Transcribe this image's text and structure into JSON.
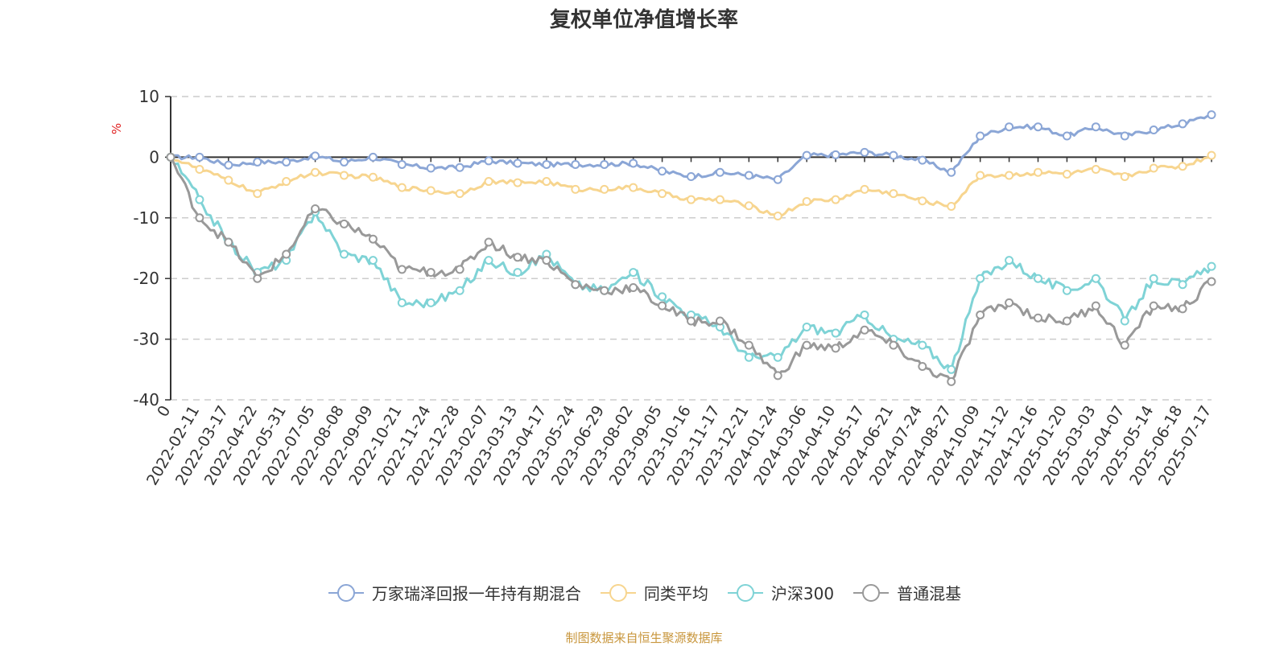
{
  "title": "复权单位净值增长率",
  "unit_label": "%",
  "source_note": "制图数据来自恒生聚源数据库",
  "legend_order": [
    "万家瑞泽回报一年持有期混合",
    "同类平均",
    "沪深300",
    "普通混基"
  ],
  "chart_data": {
    "type": "line",
    "title": "复权单位净值增长率",
    "ylabel": "%",
    "xlabel": "",
    "ylim": [
      -40,
      10
    ],
    "yticks": [
      10,
      0,
      -10,
      -20,
      -30,
      -40
    ],
    "grid": true,
    "legend_position": "bottom",
    "x_tick_labels": [
      "0",
      "2022-02-11",
      "2022-03-17",
      "2022-04-22",
      "2022-05-31",
      "2022-07-05",
      "2022-08-08",
      "2022-09-09",
      "2022-10-21",
      "2022-11-24",
      "2022-12-28",
      "2023-02-07",
      "2023-03-13",
      "2023-04-17",
      "2023-05-24",
      "2023-06-29",
      "2023-08-02",
      "2023-09-05",
      "2023-10-16",
      "2023-11-17",
      "2023-12-21",
      "2024-01-24",
      "2024-03-06",
      "2024-04-10",
      "2024-05-17",
      "2024-06-21",
      "2024-07-24",
      "2024-08-27",
      "2024-10-09",
      "2024-11-12",
      "2024-12-16",
      "2025-01-20",
      "2025-03-03",
      "2025-04-07",
      "2025-05-14",
      "2025-06-18",
      "2025-07-17"
    ],
    "series": [
      {
        "name": "万家瑞泽回报一年持有期混合",
        "color": "#8ba6d6",
        "values": [
          0,
          0,
          -1.3,
          -0.8,
          -0.8,
          0.2,
          -0.8,
          0,
          -1.2,
          -1.8,
          -1.7,
          -0.6,
          -1,
          -1.2,
          -1.2,
          -1.2,
          -1,
          -2.3,
          -3.2,
          -2.5,
          -3,
          -3.7,
          0.3,
          0.4,
          0.8,
          0.3,
          -0.5,
          -2.5,
          3.5,
          5,
          5,
          3.5,
          5,
          3.5,
          4.5,
          5.5,
          7
        ]
      },
      {
        "name": "同类平均",
        "color": "#f7d58f",
        "values": [
          0,
          -2,
          -3.8,
          -6,
          -4,
          -2.5,
          -3,
          -3.3,
          -5,
          -5.5,
          -6,
          -4,
          -4.2,
          -4,
          -5.3,
          -5.3,
          -5,
          -6,
          -7,
          -7,
          -8,
          -9.7,
          -7.3,
          -7,
          -5.3,
          -6,
          -7.2,
          -8.1,
          -3,
          -3,
          -2.5,
          -2.8,
          -2,
          -3.2,
          -1.8,
          -1.5,
          0.3
        ]
      },
      {
        "name": "沪深300",
        "color": "#7fd3d6",
        "values": [
          0,
          -7,
          -14,
          -19,
          -17,
          -9,
          -16,
          -17,
          -24,
          -24,
          -22,
          -17,
          -19,
          -16,
          -21,
          -22,
          -19,
          -23,
          -26,
          -28,
          -33,
          -33,
          -28,
          -29,
          -26,
          -30,
          -31,
          -35,
          -20,
          -17,
          -20,
          -22,
          -20,
          -27,
          -20,
          -21,
          -18
        ]
      },
      {
        "name": "普通混基",
        "color": "#999999",
        "values": [
          0,
          -10,
          -14,
          -20,
          -16,
          -8.5,
          -11,
          -13.5,
          -18.5,
          -19,
          -18.5,
          -14,
          -16.5,
          -17,
          -21,
          -22,
          -21.5,
          -24.5,
          -27,
          -27,
          -31,
          -36,
          -31,
          -31.5,
          -28.5,
          -31,
          -34.5,
          -37,
          -26,
          -24,
          -26.5,
          -27,
          -24.5,
          -31,
          -24.5,
          -25,
          -20.5
        ]
      }
    ]
  }
}
